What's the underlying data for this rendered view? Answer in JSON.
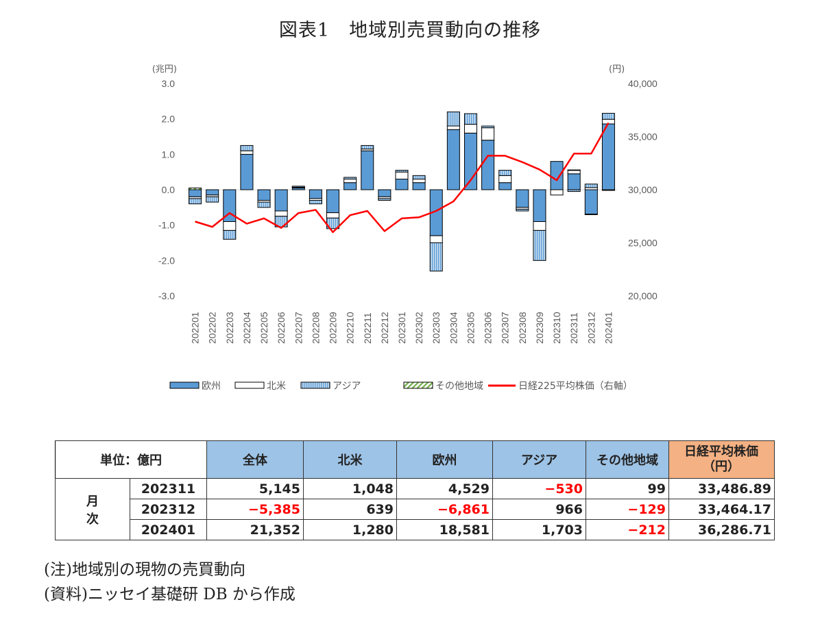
{
  "title": "図表1　地域別売買動向の推移",
  "chart_data": {
    "type": "bar",
    "stacked": true,
    "left_axis_unit": "(兆円)",
    "right_axis_unit": "(円)",
    "ylim_left": [
      -3.0,
      3.0
    ],
    "ylim_right": [
      20000,
      40000
    ],
    "left_ticks": [
      "3.0",
      "2.0",
      "1.0",
      "0.0",
      "-1.0",
      "-2.0",
      "-3.0"
    ],
    "right_ticks": [
      "40,000",
      "35,000",
      "30,000",
      "25,000",
      "20,000"
    ],
    "categories": [
      "202201",
      "202202",
      "202203",
      "202204",
      "202205",
      "202206",
      "202207",
      "202208",
      "202209",
      "202210",
      "202211",
      "202212",
      "202301",
      "202302",
      "202303",
      "202304",
      "202305",
      "202306",
      "202307",
      "202308",
      "202309",
      "202310",
      "202311",
      "202312",
      "202401"
    ],
    "series": [
      {
        "name": "欧州",
        "kind": "bar",
        "color": "#5b9bd5",
        "values": [
          -0.2,
          -0.15,
          -0.9,
          1.0,
          -0.3,
          -0.6,
          0.05,
          -0.25,
          -0.65,
          0.2,
          1.1,
          -0.2,
          0.3,
          0.2,
          -1.3,
          1.7,
          1.6,
          1.4,
          0.2,
          -0.5,
          -0.9,
          0.8,
          0.45,
          -0.69,
          1.86
        ]
      },
      {
        "name": "北米",
        "kind": "bar",
        "color": "#ffffff",
        "values": [
          -0.05,
          -0.05,
          -0.25,
          0.1,
          -0.05,
          -0.15,
          0.02,
          -0.05,
          -0.15,
          0.1,
          0.05,
          -0.05,
          0.2,
          0.1,
          -0.2,
          0.1,
          0.25,
          0.35,
          0.2,
          -0.05,
          -0.25,
          -0.15,
          0.1,
          0.06,
          0.13
        ]
      },
      {
        "name": "アジア",
        "kind": "bar",
        "color": "#bdd7ee",
        "values": [
          -0.15,
          -0.15,
          -0.25,
          0.15,
          -0.15,
          -0.3,
          0.03,
          -0.1,
          -0.3,
          0.05,
          0.1,
          -0.05,
          0.05,
          0.1,
          -0.8,
          0.4,
          0.3,
          0.05,
          0.15,
          -0.05,
          -0.85,
          0.0,
          -0.05,
          0.1,
          0.17
        ]
      },
      {
        "name": "その他地域",
        "kind": "bar",
        "color": "#70ad47",
        "values": [
          0.05,
          0.0,
          0.0,
          0.0,
          0.0,
          0.0,
          0.0,
          0.0,
          0.0,
          0.0,
          0.0,
          0.0,
          0.0,
          0.0,
          0.0,
          0.0,
          0.0,
          0.0,
          0.0,
          0.0,
          0.0,
          0.0,
          0.01,
          -0.01,
          -0.02
        ]
      },
      {
        "name": "日経225平均株価（右軸）",
        "kind": "line",
        "axis": "right",
        "color": "#ff0000",
        "values": [
          27000,
          26500,
          27800,
          26800,
          27300,
          26400,
          27800,
          28100,
          26000,
          27600,
          28000,
          26100,
          27300,
          27400,
          28000,
          28900,
          30900,
          33200,
          33200,
          32600,
          31900,
          30900,
          33400,
          33400,
          36300
        ]
      }
    ]
  },
  "table": {
    "unit_label": "単位：億円",
    "headers": [
      "全体",
      "北米",
      "欧州",
      "アジア",
      "その他地域"
    ],
    "nikkei_header_1": "日経平均株価",
    "nikkei_header_2": "（円）",
    "row_group_1": "月",
    "row_group_2": "次",
    "rows": [
      {
        "label": "202311",
        "cells": [
          "5,145",
          "1,048",
          "4,529",
          "−530",
          "99",
          "33,486.89"
        ]
      },
      {
        "label": "202312",
        "cells": [
          "−5,385",
          "639",
          "−6,861",
          "966",
          "−129",
          "33,464.17"
        ]
      },
      {
        "label": "202401",
        "cells": [
          "21,352",
          "1,280",
          "18,581",
          "1,703",
          "−212",
          "36,286.71"
        ]
      }
    ],
    "negative_color": "#ff0000",
    "header_blue": "#9dc3e6",
    "header_orange": "#f4b183"
  },
  "note_1": "(注)地域別の現物の売買動向",
  "note_2": "(資料)ニッセイ基礎研 DB から作成"
}
